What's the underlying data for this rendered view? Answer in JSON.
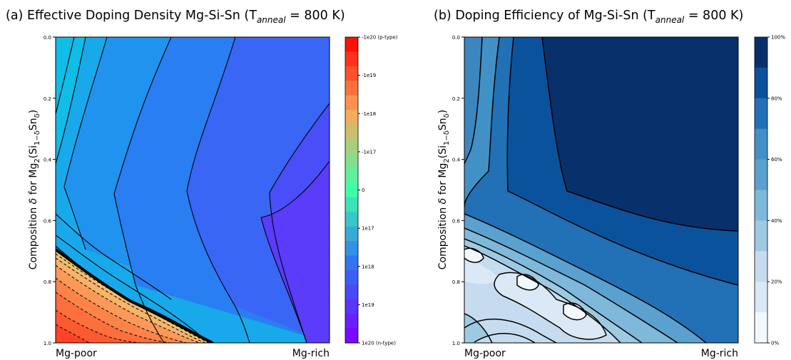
{
  "chart_data": [
    {
      "type": "heatmap",
      "title_main": "(a) Effective Doping Density  Mg-Si-Sn (T",
      "title_sub": "anneal",
      "title_end": " = 800 K)",
      "ylabel_main": "Composition ",
      "ylabel_delta": "δ",
      "ylabel_mid": " for Mg",
      "ylabel_sub2": "2",
      "ylabel_open": "(Si",
      "ylabel_sub1d": "1−δ",
      "ylabel_sn": "Sn",
      "ylabel_subd": "δ",
      "ylabel_close": ")",
      "x_tick_labels": [
        "Mg-poor",
        "Mg-rich"
      ],
      "y_ticks": [
        "0.0",
        "0.2",
        "0.4",
        "0.6",
        "0.8",
        "1.0"
      ],
      "ylim": [
        0.0,
        1.0
      ],
      "y_inverted": true,
      "colorbar": {
        "colormap": "rainbow",
        "ticks": [
          "-1e20 (p-type)",
          "-1e19",
          "-1e18",
          "-1e17",
          "0",
          "1e17",
          "1e18",
          "1e19",
          "1e20 (n-type)"
        ],
        "levels": 21
      },
      "contour_levels_solid": [
        "n-type region",
        "15 lines"
      ],
      "contour_levels_dashed": [
        "p-type region",
        "11 lines"
      ],
      "grid": false
    },
    {
      "type": "heatmap",
      "title_main": "(b) Doping Efficiency of Mg-Si-Sn (T",
      "title_sub": "anneal",
      "title_end": " = 800 K)",
      "ylabel_main": "Composition ",
      "ylabel_delta": "δ",
      "ylabel_mid": " for Mg",
      "ylabel_sub2": "2",
      "ylabel_open": "(Si",
      "ylabel_sub1d": "1−δ",
      "ylabel_sn": "Sn",
      "ylabel_subd": "δ",
      "ylabel_close": ")",
      "x_tick_labels": [
        "Mg-poor",
        "Mg-rich"
      ],
      "y_ticks": [
        "0.0",
        "0.2",
        "0.4",
        "0.6",
        "0.8",
        "1.0"
      ],
      "ylim": [
        0.0,
        1.0
      ],
      "y_inverted": true,
      "colorbar": {
        "colormap": "Blues",
        "ticks": [
          "0%",
          "20%",
          "40%",
          "60%",
          "80%",
          "100%"
        ],
        "levels": 10
      },
      "grid": false
    }
  ]
}
